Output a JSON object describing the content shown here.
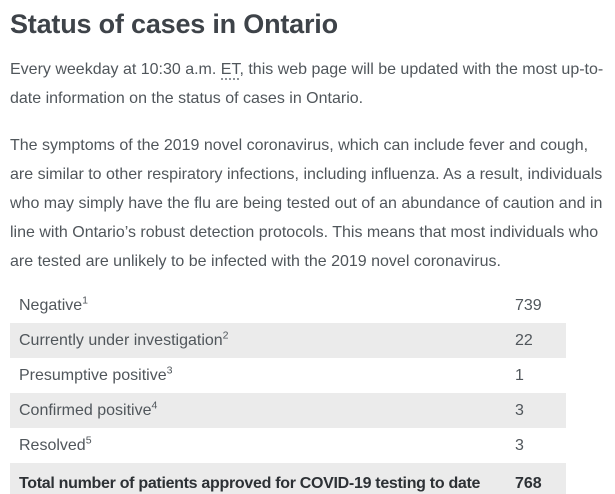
{
  "page": {
    "title": "Status of cases in Ontario",
    "intro": {
      "before_abbr": "Every weekday at 10:30 a.m. ",
      "abbr": "ET",
      "after_abbr": ", this web page will be updated with the most up-to-date information on the status of cases in Ontario."
    },
    "symptoms_paragraph": "The symptoms of the 2019 novel coronavirus, which can include fever and cough, are similar to other respiratory infections, including influenza. As a result, individuals who may simply have the flu are being tested out of an abundance of caution and in line with Ontario’s robust detection protocols. This means that most individuals who are tested are unlikely to be infected with the 2019 novel coronavirus."
  },
  "table": {
    "rows": [
      {
        "label": "Negative",
        "footnote": "1",
        "value": "739"
      },
      {
        "label": "Currently under investigation",
        "footnote": "2",
        "value": "22"
      },
      {
        "label": "Presumptive positive",
        "footnote": "3",
        "value": "1"
      },
      {
        "label": "Confirmed positive",
        "footnote": "4",
        "value": "3"
      },
      {
        "label": "Resolved",
        "footnote": "5",
        "value": "3"
      },
      {
        "label": "Total number of patients approved for COVID-19 testing to date",
        "footnote": "",
        "value": "768"
      }
    ]
  },
  "colors": {
    "heading_text": "#3e4349",
    "body_text": "#50565b",
    "row_alt_background": "#ebebeb",
    "total_row_text": "#2d3135",
    "abbr_underline": "#8d9297"
  }
}
